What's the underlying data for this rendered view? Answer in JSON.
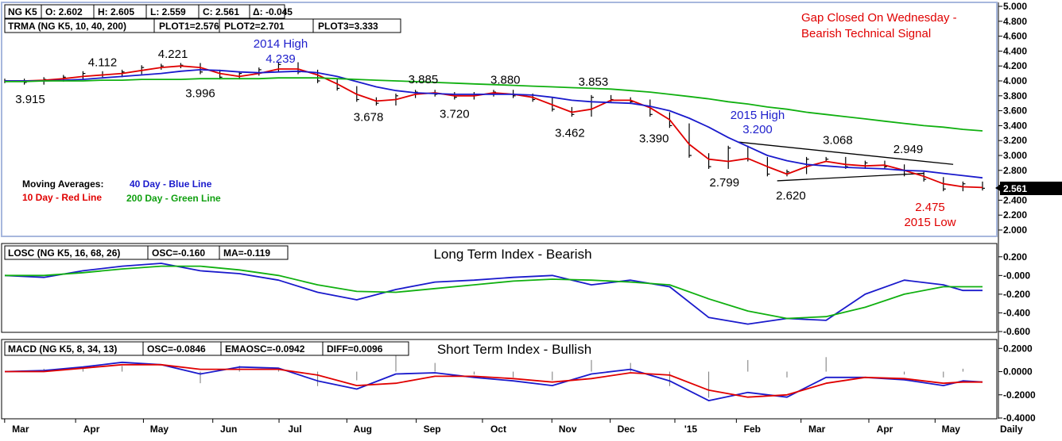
{
  "info": {
    "price_fields": [
      "NG K5",
      "O: 2.602",
      "H: 2.605",
      "L: 2.559",
      "C: 2.561",
      "Δ: -0.045"
    ],
    "trma_fields": [
      "TRMA (NG K5, 10, 40, 200)",
      "PLOT1=2.576",
      "PLOT2=2.701",
      "PLOT3=3.333"
    ],
    "losc_fields": [
      "LOSC (NG K5, 16, 68, 26)",
      "OSC=-0.160",
      "MA=-0.119"
    ],
    "macd_fields": [
      "MACD (NG K5, 8, 34, 13)",
      "OSC=-0.0846",
      "EMAOSC=-0.0942",
      "DIFF=0.0096"
    ]
  },
  "annotations": {
    "gap_line1": "Gap Closed On Wednesday -",
    "gap_line2": "Bearish Technical Signal",
    "high_2014_label": "2014 High",
    "high_2014_value": "4.239",
    "high_2015_label": "2015 High",
    "high_2015_value": "3.200",
    "low_2015_value": "2.475",
    "low_2015_label": "2015 Low",
    "points": [
      {
        "label": "4.112",
        "x": 5.0,
        "y": 4.112
      },
      {
        "label": "4.221",
        "x": 8.6,
        "y": 4.221
      },
      {
        "label": "3.915",
        "x": 1.3,
        "y": 3.915
      },
      {
        "label": "3.996",
        "x": 10.0,
        "y": 3.996
      },
      {
        "label": "3.885",
        "x": 21.4,
        "y": 3.885
      },
      {
        "label": "3.880",
        "x": 25.6,
        "y": 3.88
      },
      {
        "label": "3.853",
        "x": 30.1,
        "y": 3.853
      },
      {
        "label": "3.678",
        "x": 18.6,
        "y": 3.678
      },
      {
        "label": "3.720",
        "x": 23.0,
        "y": 3.72
      },
      {
        "label": "3.462",
        "x": 28.9,
        "y": 3.462
      },
      {
        "label": "3.390",
        "x": 33.2,
        "y": 3.39
      },
      {
        "label": "3.068",
        "x": 42.6,
        "y": 3.068
      },
      {
        "label": "2.949",
        "x": 46.2,
        "y": 2.949
      },
      {
        "label": "2.799",
        "x": 36.8,
        "y": 2.799
      },
      {
        "label": "2.620",
        "x": 40.2,
        "y": 2.62
      }
    ]
  },
  "legend": {
    "title": "Moving Averages:",
    "blue": "40 Day - Blue Line",
    "red": "10 Day - Red Line",
    "green": "200 Day - Green Line"
  },
  "panels": {
    "losc_title": "Long Term Index - Bearish",
    "macd_title": "Short Term Index - Bullish"
  },
  "current_price_label": "2.561",
  "timeframe_label": "Daily",
  "colors": {
    "blue": "#1a1acc",
    "red": "#e00000",
    "green": "#10b010",
    "annotation_red": "#e00000",
    "annotation_blue": "#2020cc",
    "frame": "#a7b7dd"
  },
  "chart_data": [
    {
      "type": "line",
      "name_hint": "price",
      "x_unit": "weeks from start of March 2014",
      "x": [
        0,
        1,
        2,
        3,
        4,
        5,
        6,
        7,
        8,
        9,
        10,
        11,
        12,
        13,
        14,
        15,
        16,
        17,
        18,
        19,
        20,
        21,
        22,
        23,
        24,
        25,
        26,
        27,
        28,
        29,
        30,
        31,
        32,
        33,
        34,
        35,
        36,
        37,
        38,
        39,
        40,
        41,
        42,
        43,
        44,
        45,
        46,
        47,
        48,
        49,
        50
      ],
      "close": [
        4.0,
        3.98,
        4.02,
        4.05,
        4.1,
        4.08,
        4.12,
        4.18,
        4.2,
        4.21,
        4.12,
        4.05,
        4.1,
        4.15,
        4.22,
        4.12,
        4.0,
        3.9,
        3.75,
        3.7,
        3.8,
        3.85,
        3.82,
        3.78,
        3.82,
        3.85,
        3.8,
        3.75,
        3.62,
        3.55,
        3.78,
        3.75,
        3.72,
        3.55,
        3.4,
        3.0,
        2.85,
        3.1,
        2.95,
        2.75,
        2.78,
        2.95,
        2.95,
        2.85,
        2.9,
        2.85,
        2.75,
        2.68,
        2.55,
        2.62,
        2.56
      ],
      "series": [
        {
          "name": "10 Day",
          "color": "red",
          "values": [
            4.0,
            4.0,
            4.01,
            4.03,
            4.06,
            4.08,
            4.1,
            4.14,
            4.18,
            4.2,
            4.18,
            4.1,
            4.06,
            4.1,
            4.16,
            4.16,
            4.08,
            3.96,
            3.82,
            3.73,
            3.75,
            3.82,
            3.84,
            3.8,
            3.8,
            3.84,
            3.82,
            3.78,
            3.68,
            3.58,
            3.62,
            3.74,
            3.74,
            3.64,
            3.48,
            3.15,
            2.95,
            2.92,
            2.96,
            2.85,
            2.75,
            2.85,
            2.92,
            2.88,
            2.86,
            2.87,
            2.8,
            2.72,
            2.62,
            2.58,
            2.57
          ]
        },
        {
          "name": "40 Day",
          "color": "blue",
          "values": [
            4.0,
            4.0,
            4.0,
            4.01,
            4.02,
            4.04,
            4.06,
            4.08,
            4.1,
            4.13,
            4.15,
            4.14,
            4.12,
            4.11,
            4.12,
            4.13,
            4.11,
            4.06,
            3.99,
            3.92,
            3.87,
            3.84,
            3.83,
            3.82,
            3.82,
            3.82,
            3.82,
            3.81,
            3.78,
            3.74,
            3.72,
            3.71,
            3.7,
            3.66,
            3.6,
            3.5,
            3.38,
            3.24,
            3.12,
            3.0,
            2.93,
            2.88,
            2.86,
            2.84,
            2.83,
            2.82,
            2.8,
            2.79,
            2.76,
            2.73,
            2.7
          ]
        },
        {
          "name": "200 Day",
          "color": "green",
          "values": [
            3.99,
            3.99,
            4.0,
            4.0,
            4.0,
            4.01,
            4.01,
            4.02,
            4.02,
            4.02,
            4.03,
            4.03,
            4.03,
            4.03,
            4.04,
            4.04,
            4.04,
            4.03,
            4.02,
            4.01,
            4.0,
            3.99,
            3.98,
            3.97,
            3.96,
            3.95,
            3.94,
            3.93,
            3.92,
            3.91,
            3.9,
            3.89,
            3.87,
            3.85,
            3.82,
            3.79,
            3.76,
            3.72,
            3.69,
            3.65,
            3.62,
            3.58,
            3.55,
            3.52,
            3.49,
            3.46,
            3.43,
            3.4,
            3.38,
            3.35,
            3.33
          ]
        }
      ],
      "ylim": [
        2.0,
        5.0
      ],
      "yticks": [
        "2.000",
        "2.200",
        "2.400",
        "2.600",
        "2.800",
        "3.000",
        "3.200",
        "3.400",
        "3.600",
        "3.800",
        "4.000",
        "4.200",
        "4.400",
        "4.600",
        "4.800",
        "5.000"
      ],
      "triangle": {
        "upper": [
          [
            37.5,
            3.18
          ],
          [
            48.5,
            2.88
          ]
        ],
        "lower": [
          [
            39.5,
            2.66
          ],
          [
            47.0,
            2.76
          ]
        ]
      }
    },
    {
      "type": "line",
      "name_hint": "losc",
      "x": [
        0,
        2,
        4,
        6,
        8,
        10,
        12,
        14,
        16,
        18,
        20,
        22,
        24,
        26,
        28,
        30,
        32,
        34,
        36,
        38,
        40,
        42,
        44,
        46,
        48,
        49,
        50
      ],
      "series": [
        {
          "name": "OSC",
          "color": "blue",
          "values": [
            0.0,
            -0.02,
            0.05,
            0.1,
            0.13,
            0.05,
            0.02,
            -0.05,
            -0.18,
            -0.26,
            -0.15,
            -0.07,
            -0.05,
            -0.02,
            0.0,
            -0.1,
            -0.05,
            -0.12,
            -0.45,
            -0.52,
            -0.46,
            -0.48,
            -0.2,
            -0.05,
            -0.1,
            -0.16,
            -0.16
          ]
        },
        {
          "name": "MA",
          "color": "green",
          "values": [
            0.0,
            0.0,
            0.03,
            0.07,
            0.1,
            0.1,
            0.06,
            0.0,
            -0.1,
            -0.17,
            -0.18,
            -0.14,
            -0.1,
            -0.06,
            -0.04,
            -0.05,
            -0.07,
            -0.1,
            -0.25,
            -0.38,
            -0.46,
            -0.44,
            -0.34,
            -0.2,
            -0.12,
            -0.12,
            -0.12
          ]
        }
      ],
      "ylim": [
        -0.6,
        0.3
      ],
      "yticks": [
        "0.200",
        "-0.000",
        "-0.200",
        "-0.400",
        "-0.600"
      ]
    },
    {
      "type": "line",
      "name_hint": "macd",
      "x": [
        0,
        2,
        4,
        6,
        8,
        10,
        12,
        14,
        16,
        18,
        20,
        22,
        24,
        26,
        28,
        30,
        32,
        34,
        36,
        38,
        40,
        42,
        44,
        46,
        48,
        49,
        50
      ],
      "series": [
        {
          "name": "OSC",
          "color": "blue",
          "values": [
            -0.0,
            0.01,
            0.04,
            0.08,
            0.06,
            -0.02,
            0.04,
            0.03,
            -0.08,
            -0.15,
            -0.02,
            -0.01,
            -0.05,
            -0.08,
            -0.12,
            -0.02,
            0.02,
            -0.08,
            -0.25,
            -0.18,
            -0.22,
            -0.05,
            -0.05,
            -0.07,
            -0.12,
            -0.08,
            -0.09
          ]
        },
        {
          "name": "EMAOSC",
          "color": "red",
          "values": [
            0.0,
            0.0,
            0.03,
            0.06,
            0.06,
            0.02,
            0.02,
            0.02,
            -0.03,
            -0.12,
            -0.1,
            -0.04,
            -0.04,
            -0.06,
            -0.09,
            -0.06,
            -0.01,
            -0.03,
            -0.16,
            -0.22,
            -0.2,
            -0.1,
            -0.05,
            -0.06,
            -0.1,
            -0.09,
            -0.09
          ]
        }
      ],
      "ylim": [
        -0.4,
        0.25
      ],
      "yticks": [
        "0.2000",
        "0.0000",
        "-0.2000",
        "-0.4000"
      ]
    }
  ],
  "x_labels": [
    {
      "label": "Mar",
      "x": 1.0
    },
    {
      "label": "Apr",
      "x": 5.5
    },
    {
      "label": "May",
      "x": 9.8
    },
    {
      "label": "Jun",
      "x": 14.2
    },
    {
      "label": "Jul",
      "x": 18.4
    },
    {
      "label": "Aug",
      "x": 22.7
    },
    {
      "label": "Sep",
      "x": 27.1
    },
    {
      "label": "Oct",
      "x": 31.3
    },
    {
      "label": "Nov",
      "x": 35.7
    },
    {
      "label": "Dec",
      "x": 39.4
    },
    {
      "label": "'15",
      "x": 43.5
    },
    {
      "label": "Feb",
      "x": 47.4
    },
    {
      "label": "Mar",
      "x": 51.5
    },
    {
      "label": "Apr",
      "x": 55.8
    },
    {
      "label": "May",
      "x": 60.0
    }
  ]
}
